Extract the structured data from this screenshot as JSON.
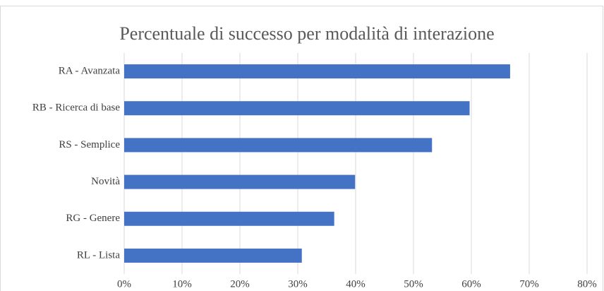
{
  "chart_data": {
    "type": "bar",
    "orientation": "horizontal",
    "title": "Percentuale di successo per modalità di interazione",
    "categories": [
      "RA - Avanzata",
      "RB - Ricerca di base",
      "RS - Semplice",
      "Novità",
      "RG - Genere",
      "RL - Lista"
    ],
    "values": [
      66.7,
      59.7,
      53.2,
      39.9,
      36.3,
      30.7
    ],
    "color": "#4472c4",
    "xlim": [
      0,
      80
    ],
    "xticks": [
      {
        "value": 0,
        "label": "0%"
      },
      {
        "value": 10,
        "label": "10%"
      },
      {
        "value": 20,
        "label": "20%"
      },
      {
        "value": 30,
        "label": "30%"
      },
      {
        "value": 40,
        "label": "40%"
      },
      {
        "value": 50,
        "label": "50%"
      },
      {
        "value": 60,
        "label": "60%"
      },
      {
        "value": 70,
        "label": "70%"
      },
      {
        "value": 80,
        "label": "80%"
      }
    ],
    "grid": true
  }
}
